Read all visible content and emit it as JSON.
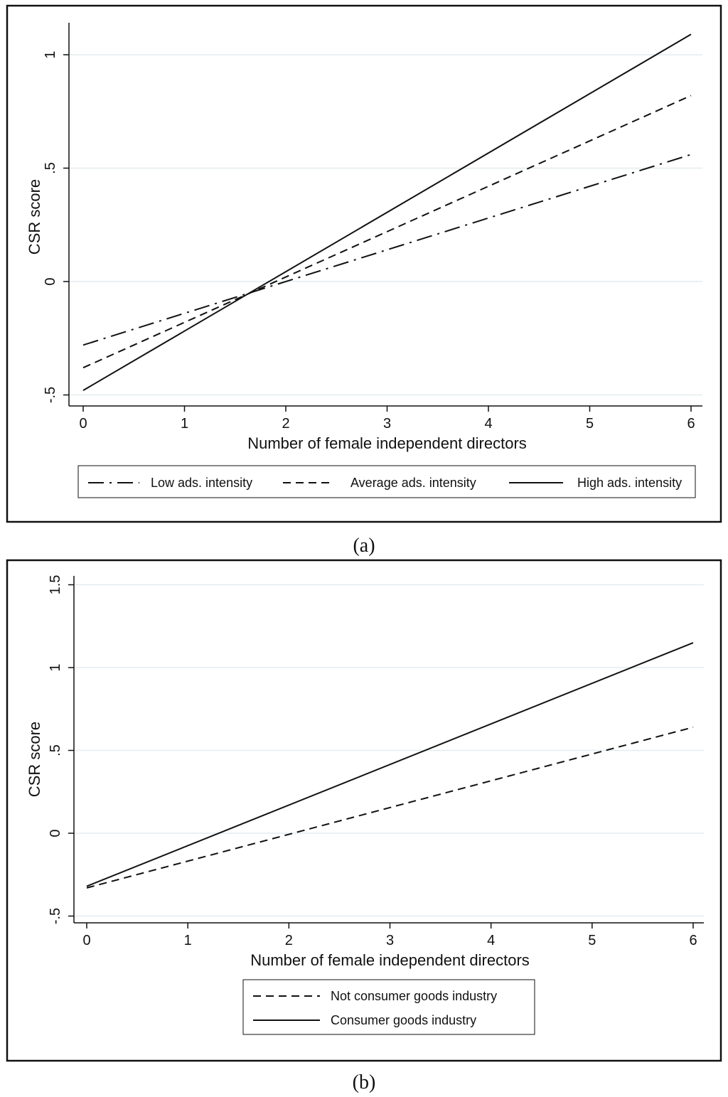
{
  "chart_data": [
    {
      "type": "line",
      "caption": "(a)",
      "title": "",
      "xlabel": "Number of female independent directors",
      "ylabel": "CSR score",
      "xlim": [
        0,
        6
      ],
      "ylim": [
        -0.5,
        1.1
      ],
      "x_ticks": [
        0,
        1,
        2,
        3,
        4,
        5,
        6
      ],
      "x_tick_labels": [
        "0",
        "1",
        "2",
        "3",
        "4",
        "5",
        "6"
      ],
      "y_ticks": [
        -0.5,
        0,
        0.5,
        1
      ],
      "y_tick_labels": [
        "-.5",
        "0",
        ".5",
        "1"
      ],
      "grid": true,
      "legend_position": "bottom",
      "series": [
        {
          "name": "Low ads. intensity",
          "style": "dashdot",
          "x": [
            0,
            6
          ],
          "y": [
            -0.28,
            0.56
          ]
        },
        {
          "name": "Average ads. intensity",
          "style": "dashed",
          "x": [
            0,
            6
          ],
          "y": [
            -0.38,
            0.82
          ]
        },
        {
          "name": "High ads. intensity",
          "style": "solid",
          "x": [
            0,
            6
          ],
          "y": [
            -0.48,
            1.09
          ]
        }
      ]
    },
    {
      "type": "line",
      "caption": "(b)",
      "title": "",
      "xlabel": "Number of female independent directors",
      "ylabel": "CSR score",
      "xlim": [
        0,
        6
      ],
      "ylim": [
        -0.5,
        1.5
      ],
      "x_ticks": [
        0,
        1,
        2,
        3,
        4,
        5,
        6
      ],
      "x_tick_labels": [
        "0",
        "1",
        "2",
        "3",
        "4",
        "5",
        "6"
      ],
      "y_ticks": [
        -0.5,
        0,
        0.5,
        1,
        1.5
      ],
      "y_tick_labels": [
        "-.5",
        "0",
        ".5",
        "1",
        "1.5"
      ],
      "grid": true,
      "legend_position": "bottom",
      "series": [
        {
          "name": "Not consumer goods industry",
          "style": "dashed",
          "x": [
            0,
            6
          ],
          "y": [
            -0.33,
            0.64
          ]
        },
        {
          "name": "Consumer goods industry",
          "style": "solid",
          "x": [
            0,
            6
          ],
          "y": [
            -0.32,
            1.15
          ]
        }
      ]
    }
  ]
}
